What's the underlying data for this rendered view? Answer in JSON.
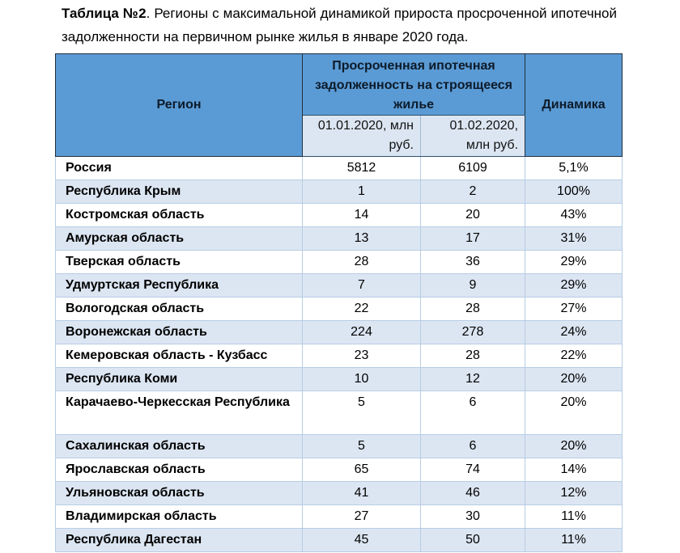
{
  "caption": {
    "label": "Таблица №2",
    "text": ". Регионы с максимальной динамикой прироста просроченной ипотечной задолженности на первичном рынке жилья в январе 2020 года."
  },
  "table": {
    "headers": {
      "region": "Регион",
      "group": "Просроченная ипотечная задолженность на строящееся жилье",
      "col1": "01.01.2020, млн руб.",
      "col2": "01.02.2020, млн руб.",
      "dynamics": "Динамика"
    },
    "rows": [
      {
        "region": "Россия",
        "v1": "5812",
        "v2": "6109",
        "dyn": "5,1%"
      },
      {
        "region": "Республика Крым",
        "v1": "1",
        "v2": "2",
        "dyn": "100%"
      },
      {
        "region": "Костромская область",
        "v1": "14",
        "v2": "20",
        "dyn": "43%"
      },
      {
        "region": "Амурская область",
        "v1": "13",
        "v2": "17",
        "dyn": "31%"
      },
      {
        "region": "Тверская область",
        "v1": "28",
        "v2": "36",
        "dyn": "29%"
      },
      {
        "region": "Удмуртская Республика",
        "v1": "7",
        "v2": "9",
        "dyn": "29%"
      },
      {
        "region": "Вологодская область",
        "v1": "22",
        "v2": "28",
        "dyn": "27%"
      },
      {
        "region": "Воронежская область",
        "v1": "224",
        "v2": "278",
        "dyn": "24%"
      },
      {
        "region": "Кемеровская область - Кузбасс",
        "v1": "23",
        "v2": "28",
        "dyn": "22%"
      },
      {
        "region": "Республика Коми",
        "v1": "10",
        "v2": "12",
        "dyn": "20%"
      },
      {
        "region": "Карачаево-Черкесская Республика",
        "v1": "5",
        "v2": "6",
        "dyn": "20%"
      },
      {
        "region": "Сахалинская область",
        "v1": "5",
        "v2": "6",
        "dyn": "20%"
      },
      {
        "region": "Ярославская область",
        "v1": "65",
        "v2": "74",
        "dyn": "14%"
      },
      {
        "region": "Ульяновская область",
        "v1": "41",
        "v2": "46",
        "dyn": "12%"
      },
      {
        "region": "Владимирская область",
        "v1": "27",
        "v2": "30",
        "dyn": "11%"
      },
      {
        "region": "Республика Дагестан",
        "v1": "45",
        "v2": "50",
        "dyn": "11%"
      }
    ]
  },
  "colors": {
    "header_bg": "#5b9bd5",
    "subheader_bg": "#dce6f2",
    "row_alt_bg": "#dce6f2",
    "grid": "#b7cde4"
  }
}
